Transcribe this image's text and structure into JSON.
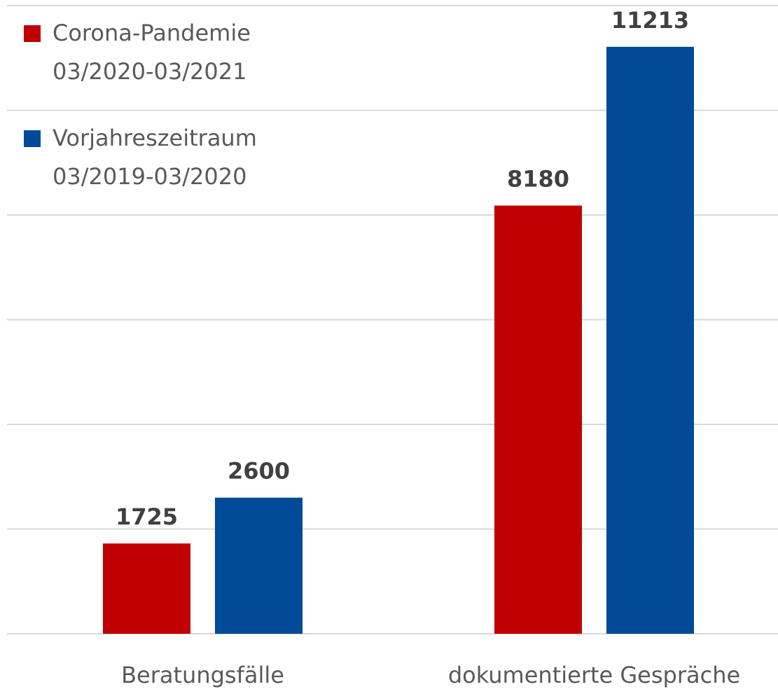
{
  "chart_data": {
    "type": "bar",
    "categories": [
      "Beratungsfälle",
      "dokumentierte Gespräche"
    ],
    "series": [
      {
        "name": "Corona-Pandemie\n03/2020-03/2021",
        "color": "#c00000",
        "values": [
          1725,
          8180
        ]
      },
      {
        "name": "Vorjahreszeitraum\n03/2019-03/2020",
        "color": "#004a98",
        "values": [
          2600,
          11213
        ]
      }
    ],
    "ylim": [
      0,
      12000
    ],
    "yticks": [
      0,
      2000,
      4000,
      6000,
      8000,
      10000,
      12000
    ],
    "grid": true,
    "legend": "top-left"
  }
}
